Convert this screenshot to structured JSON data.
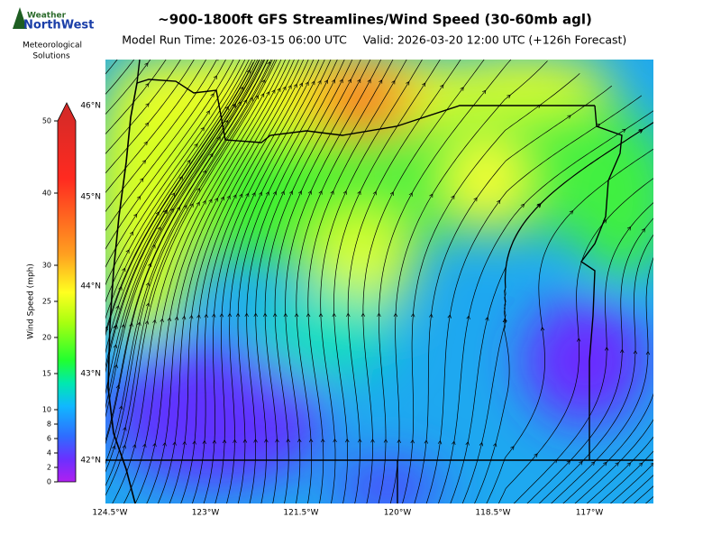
{
  "logo": {
    "brand_top": "Weather",
    "brand": "NorthWest",
    "line1": "Meteorological",
    "line2": "Solutions"
  },
  "header": {
    "title": "~900-1800ft GFS Streamlines/Wind Speed (30-60mb agl)",
    "run_time": "Model Run Time: 2026-03-15 06:00 UTC",
    "valid": "Valid: 2026-03-20 12:00 UTC  (+126h Forecast)"
  },
  "colorbar": {
    "label": "Wind Speed (mph)",
    "lim": [
      0,
      50
    ],
    "ticks": [
      0,
      2,
      4,
      6,
      8,
      10,
      15,
      20,
      25,
      30,
      40,
      50
    ]
  },
  "map": {
    "lat_labels": [
      "46°N",
      "45°N",
      "44°N",
      "43°N",
      "42°N"
    ],
    "lon_labels": [
      "124.5°W",
      "123°W",
      "121.5°W",
      "120°W",
      "118.5°W",
      "117°W"
    ]
  }
}
